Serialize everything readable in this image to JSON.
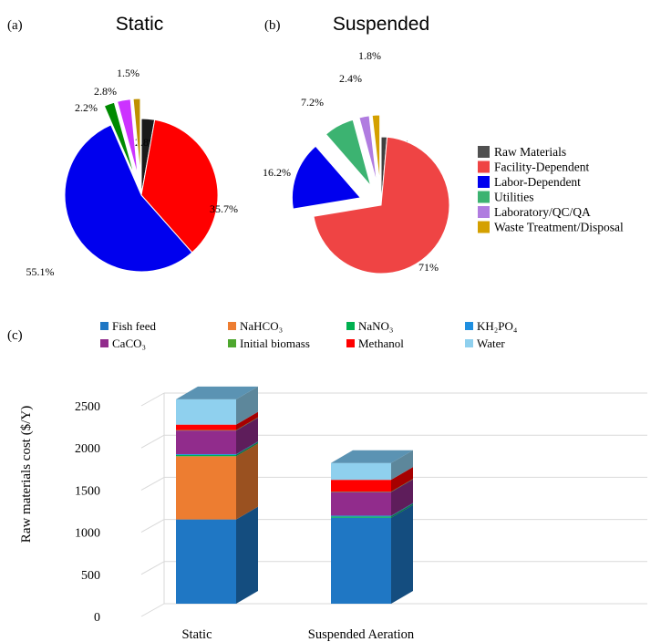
{
  "panel_a": {
    "panel_label": "(a)"
  },
  "panel_b": {
    "panel_label": "(b)"
  },
  "panel_c": {
    "panel_label": "(c)"
  },
  "chart_data": [
    {
      "type": "pie",
      "title": "Static",
      "categories": [
        "Raw Materials",
        "Facility-Dependent",
        "Labor-Dependent",
        "Utilities",
        "Laboratory/QC/QA",
        "Waste Treatment/Disposal"
      ],
      "values": [
        2.8,
        35.7,
        55.1,
        2.2,
        2.8,
        1.5
      ],
      "labels": [
        "2.8%",
        "35.7%",
        "55.1%",
        "2.2%",
        "2.8%",
        "1.5%"
      ],
      "colors": [
        "#1a1a1a",
        "#ff0000",
        "#0000ee",
        "#008a00",
        "#cc33ff",
        "#bf9000"
      ],
      "exploded": [
        false,
        false,
        false,
        true,
        true,
        true
      ]
    },
    {
      "type": "pie",
      "title": "Suspended",
      "categories": [
        "Raw Materials",
        "Facility-Dependent",
        "Labor-Dependent",
        "Utilities",
        "Laboratory/QC/QA",
        "Waste Treatment/Disposal"
      ],
      "values": [
        1.4,
        71,
        16.2,
        7.2,
        2.4,
        1.8
      ],
      "labels": [
        "1.4%",
        "71%",
        "16.2%",
        "7.2%",
        "2.4%",
        "1.8%"
      ],
      "colors": [
        "#404040",
        "#ef4444",
        "#0000ee",
        "#3cb371",
        "#b07ce0",
        "#d4a000"
      ],
      "exploded": [
        false,
        false,
        true,
        true,
        true,
        true
      ],
      "legend": [
        {
          "name": "Raw Materials",
          "color": "#505050"
        },
        {
          "name": "Facility-Dependent",
          "color": "#ef4444"
        },
        {
          "name": "Labor-Dependent",
          "color": "#0000ee"
        },
        {
          "name": "Utilities",
          "color": "#3cb371"
        },
        {
          "name": "Laboratory/QC/QA",
          "color": "#b07ce0"
        },
        {
          "name": "Waste Treatment/Disposal",
          "color": "#d4a000"
        }
      ]
    },
    {
      "type": "bar",
      "stacked": true,
      "ylabel": "Raw materials cost ($/Y)",
      "ylim": [
        0,
        2500
      ],
      "yticks": [
        "0",
        "500",
        "1000",
        "1500",
        "2000",
        "2500"
      ],
      "categories": [
        "Static",
        "Suspended Aeration"
      ],
      "series": [
        {
          "name": "Fish feed",
          "color": "#1f77c4",
          "values": [
            1000,
            1020
          ]
        },
        {
          "name": "NaHCO₃",
          "color": "#ed7d31",
          "values": [
            750,
            0
          ]
        },
        {
          "name": "NaNO₃",
          "color": "#00b050",
          "values": [
            15,
            15
          ]
        },
        {
          "name": "KH₂PO₄",
          "color": "#1f8fe0",
          "values": [
            10,
            10
          ]
        },
        {
          "name": "CaCO₃",
          "color": "#912c8c",
          "values": [
            280,
            280
          ]
        },
        {
          "name": "Initial biomass",
          "color": "#4ea72e",
          "values": [
            5,
            5
          ]
        },
        {
          "name": "Methanol",
          "color": "#ff0000",
          "values": [
            65,
            140
          ]
        },
        {
          "name": "Water",
          "color": "#8fd0ee",
          "values": [
            300,
            200
          ]
        }
      ],
      "legend_order": [
        "Fish feed",
        "NaHCO₃",
        "NaNO₃",
        "KH₂PO₄",
        "CaCO₃",
        "Initial biomass",
        "Methanol",
        "Water"
      ]
    }
  ]
}
